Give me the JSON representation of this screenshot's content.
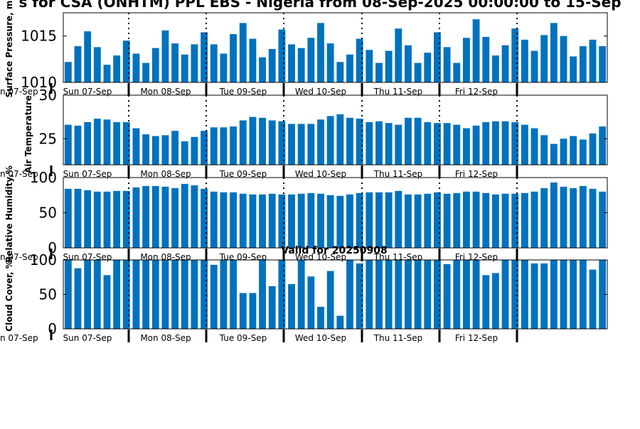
{
  "title": "s for CSA (ONHTM) PPL EBS  - Nigeria from 08-Sep-2025 00:00:00 to 15-Sep",
  "valid_label": "Valid for 20250908",
  "day_labels": [
    "Sun 07-Sep",
    "Mon 08-Sep",
    "Tue 09-Sep",
    "Wed 10-Sep",
    "Thu 11-Sep",
    "Fri 12-Sep"
  ],
  "left_cut_label": "n 07-Sep",
  "colors": {
    "bar": "#0072bd",
    "axis": "#000000",
    "background": "#ffffff"
  },
  "chart_data": [
    {
      "type": "bar",
      "ylabel": "Surface Pressure, m",
      "ylim": [
        1010,
        1017.5
      ],
      "yticks": [
        1010,
        1015
      ],
      "values": [
        1012.2,
        1013.9,
        1015.5,
        1013.8,
        1011.9,
        1012.9,
        1014.5,
        1013.1,
        1012.1,
        1013.7,
        1015.6,
        1014.2,
        1013.0,
        1014.1,
        1015.4,
        1014.1,
        1013.1,
        1015.2,
        1016.4,
        1014.7,
        1012.7,
        1013.6,
        1015.7,
        1014.1,
        1013.7,
        1014.8,
        1016.4,
        1014.2,
        1012.2,
        1013.0,
        1014.7,
        1013.5,
        1012.1,
        1013.4,
        1015.8,
        1014.0,
        1012.1,
        1013.2,
        1015.4,
        1013.8,
        1012.1,
        1014.8,
        1016.8,
        1014.9,
        1012.9,
        1014.0,
        1015.8,
        1014.6,
        1013.4,
        1015.1,
        1016.4,
        1015.0,
        1012.8,
        1013.9,
        1014.6,
        1013.9
      ]
    },
    {
      "type": "bar",
      "ylabel": "Air Temperature",
      "ylim": [
        22,
        30
      ],
      "yticks": [
        25,
        30
      ],
      "values": [
        26.6,
        26.5,
        26.9,
        27.3,
        27.2,
        26.9,
        26.9,
        26.2,
        25.5,
        25.3,
        25.4,
        25.9,
        24.7,
        25.2,
        25.9,
        26.3,
        26.3,
        26.4,
        27.1,
        27.5,
        27.4,
        27.1,
        27.0,
        26.7,
        26.7,
        26.7,
        27.2,
        27.6,
        27.8,
        27.4,
        27.3,
        26.9,
        27.0,
        26.8,
        26.6,
        27.4,
        27.4,
        26.9,
        26.8,
        26.8,
        26.6,
        26.2,
        26.5,
        26.9,
        27.0,
        27.0,
        26.9,
        26.6,
        26.2,
        25.4,
        24.4,
        25.0,
        25.3,
        24.9,
        25.6,
        26.4
      ]
    },
    {
      "type": "bar",
      "ylabel": "Relative Humidity,%",
      "ylim": [
        0,
        100
      ],
      "yticks": [
        0,
        50,
        100
      ],
      "values": [
        84,
        84,
        82,
        80,
        80,
        81,
        81,
        86,
        88,
        88,
        87,
        85,
        91,
        89,
        84,
        80,
        79,
        79,
        77,
        76,
        76,
        77,
        76,
        76,
        77,
        78,
        77,
        75,
        74,
        76,
        78,
        79,
        79,
        79,
        81,
        76,
        76,
        77,
        79,
        77,
        78,
        80,
        80,
        78,
        76,
        77,
        77,
        78,
        80,
        85,
        93,
        87,
        85,
        88,
        84,
        80
      ]
    },
    {
      "type": "bar",
      "ylabel": "Cloud Cover, %",
      "ylim": [
        0,
        100
      ],
      "yticks": [
        0,
        50,
        100
      ],
      "values": [
        100,
        88,
        100,
        100,
        78,
        100,
        100,
        100,
        100,
        100,
        100,
        100,
        100,
        100,
        100,
        93,
        100,
        100,
        52,
        52,
        100,
        62,
        100,
        65,
        100,
        76,
        32,
        84,
        19,
        100,
        95,
        100,
        100,
        100,
        100,
        100,
        100,
        100,
        100,
        94,
        100,
        100,
        100,
        78,
        81,
        100,
        100,
        100,
        95,
        95,
        100,
        100,
        100,
        100,
        86,
        100
      ]
    }
  ]
}
